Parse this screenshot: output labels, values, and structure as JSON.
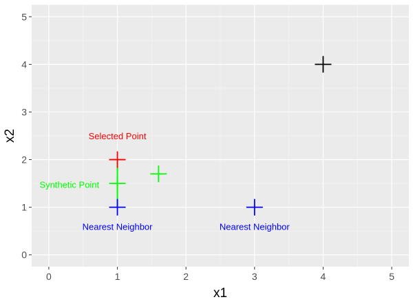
{
  "chart_data": {
    "type": "scatter",
    "xlabel": "x1",
    "ylabel": "x2",
    "xlim": [
      -0.25,
      5.25
    ],
    "ylim": [
      -0.25,
      5.25
    ],
    "x_ticks": [
      "0",
      "1",
      "2",
      "3",
      "4",
      "5"
    ],
    "y_ticks": [
      "0",
      "1",
      "2",
      "3",
      "4",
      "5"
    ],
    "grid": true,
    "marker": "cross",
    "points": [
      {
        "x": 4,
        "y": 4,
        "color": "#000000"
      },
      {
        "x": 1,
        "y": 2,
        "color": "#ff0000"
      },
      {
        "x": 1,
        "y": 1,
        "color": "#0000ff"
      },
      {
        "x": 3,
        "y": 1,
        "color": "#0000ff"
      },
      {
        "x": 1,
        "y": 1.5,
        "color": "#00ff00"
      },
      {
        "x": 1.6,
        "y": 1.7,
        "color": "#00ff00"
      }
    ],
    "segments": [
      {
        "x1": 1,
        "y1": 2,
        "x2": 1,
        "y2": 1,
        "color": "#00ff00"
      }
    ],
    "annotations": [
      {
        "text": "Selected Point",
        "x": 1,
        "y": 2.5,
        "color": "#ff0000"
      },
      {
        "text": "Synthetic Point",
        "x": 0.3,
        "y": 1.48,
        "color": "#00ff00"
      },
      {
        "text": "Nearest Neighbor",
        "x": 1,
        "y": 0.6,
        "color": "#0000ff"
      },
      {
        "text": "Nearest Neighbor",
        "x": 3,
        "y": 0.6,
        "color": "#0000ff"
      }
    ]
  },
  "colors": {
    "panel": "#ebebeb",
    "grid_major": "#ffffff"
  }
}
